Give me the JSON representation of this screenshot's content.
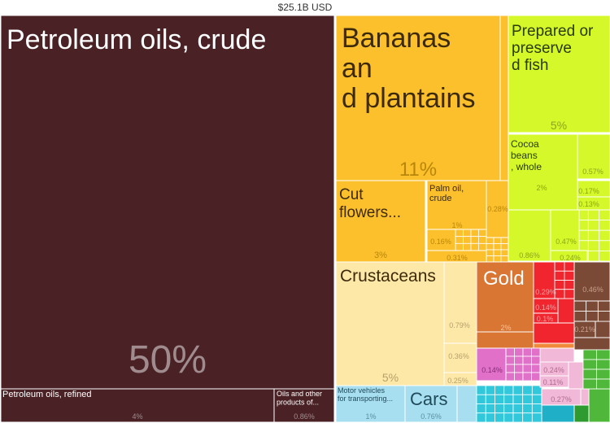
{
  "chart_data": {
    "type": "treemap",
    "title": "$25.1B USD",
    "cells": [
      {
        "name": "Petroleum oils, crude",
        "value": "50%",
        "color": "#4a2226"
      },
      {
        "name": "Petroleum oils, refined",
        "value": "4%",
        "color": "#4a2226"
      },
      {
        "name": "Oils and other products of...",
        "value": "0.86%",
        "color": "#4a2226"
      },
      {
        "name": "Bananas and plantains",
        "value": "11%",
        "color": "#fcc02d"
      },
      {
        "name": "Cut flowers...",
        "value": "3%",
        "color": "#fcc02d"
      },
      {
        "name": "Palm oil, crude",
        "value": "1%",
        "color": "#fcc02d"
      },
      {
        "name": "",
        "value": "0.28%",
        "color": "#fcc02d"
      },
      {
        "name": "",
        "value": "0.16%",
        "color": "#fcc02d"
      },
      {
        "name": "",
        "value": "0.31%",
        "color": "#fcc02d"
      },
      {
        "name": "Prepared or preserved fish",
        "value": "5%",
        "color": "#d4f82a"
      },
      {
        "name": "Cocoa beans, whole",
        "value": "2%",
        "color": "#d4f82a"
      },
      {
        "name": "",
        "value": "0.57%",
        "color": "#d4f82a"
      },
      {
        "name": "",
        "value": "0.17%",
        "color": "#d4f82a"
      },
      {
        "name": "",
        "value": "0.13%",
        "color": "#d4f82a"
      },
      {
        "name": "",
        "value": "0.86%",
        "color": "#d4f82a"
      },
      {
        "name": "",
        "value": "0.47%",
        "color": "#d4f82a"
      },
      {
        "name": "",
        "value": "0.24%",
        "color": "#d4f82a"
      },
      {
        "name": "Crustaceans",
        "value": "5%",
        "color": "#fde8a8"
      },
      {
        "name": "",
        "value": "0.79%",
        "color": "#fde8a8"
      },
      {
        "name": "",
        "value": "0.36%",
        "color": "#fde8a8"
      },
      {
        "name": "",
        "value": "0.25%",
        "color": "#fde8a8"
      },
      {
        "name": "Gold",
        "value": "2%",
        "color": "#d97634"
      },
      {
        "name": "",
        "value": "0.29%",
        "color": "#f1252d"
      },
      {
        "name": "",
        "value": "0.14%",
        "color": "#f1252d"
      },
      {
        "name": "",
        "value": "0.1%",
        "color": "#f1252d"
      },
      {
        "name": "",
        "value": "0.46%",
        "color": "#7a4a36"
      },
      {
        "name": "",
        "value": "0.21%",
        "color": "#7a4a36"
      },
      {
        "name": "",
        "value": "0.14%",
        "color": "#e070c8"
      },
      {
        "name": "",
        "value": "0.24%",
        "color": "#f2b8d8"
      },
      {
        "name": "",
        "value": "0.11%",
        "color": "#f2b8d8"
      },
      {
        "name": "",
        "value": "0.27%",
        "color": "#f2b8d8"
      },
      {
        "name": "Motor vehicles for transporting...",
        "value": "1%",
        "color": "#a8dff0"
      },
      {
        "name": "Cars",
        "value": "0.76%",
        "color": "#a8dff0"
      }
    ]
  }
}
